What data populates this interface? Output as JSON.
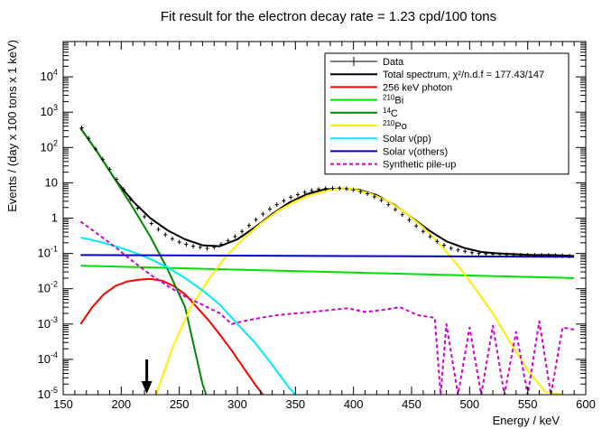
{
  "chart_data": {
    "type": "line",
    "title": "Fit result for the electron decay rate = 1.23 cpd/100 tons",
    "xlabel": "Energy / keV",
    "ylabel": "Events / (day x 100 tons x 1 keV)",
    "xlim": [
      150,
      600
    ],
    "ylim": [
      1e-05,
      100000.0
    ],
    "yscale": "log",
    "grid": false,
    "legend_position": "top-right",
    "x_ticks": [
      150,
      200,
      250,
      300,
      350,
      400,
      450,
      500,
      550,
      600
    ],
    "x_tick_labels": [
      "150",
      "200",
      "250",
      "300",
      "350",
      "400",
      "450",
      "500",
      "550",
      "600"
    ],
    "y_ticks": [
      1e-05,
      0.0001,
      0.001,
      0.01,
      0.1,
      1,
      10,
      100,
      1000,
      10000
    ],
    "y_tick_labels": [
      {
        "base": "10",
        "exp": "-5"
      },
      {
        "base": "10",
        "exp": "-4"
      },
      {
        "base": "10",
        "exp": "-3"
      },
      {
        "base": "10",
        "exp": "-2"
      },
      {
        "base": "10",
        "exp": "-1"
      },
      {
        "base": "1",
        "exp": ""
      },
      {
        "base": "10",
        "exp": ""
      },
      {
        "base": "10",
        "exp": "2"
      },
      {
        "base": "10",
        "exp": "3"
      },
      {
        "base": "10",
        "exp": "4"
      }
    ],
    "arrow_marker_x": 222,
    "series": [
      {
        "name": "Total spectrum",
        "color": "#000000",
        "style": "solid",
        "x": [
          165,
          180,
          195,
          210,
          225,
          240,
          255,
          270,
          285,
          300,
          315,
          330,
          345,
          360,
          375,
          390,
          405,
          420,
          435,
          450,
          465,
          480,
          495,
          510,
          525,
          540,
          555,
          570,
          590
        ],
        "y": [
          350,
          70,
          12,
          3,
          1.0,
          0.45,
          0.25,
          0.17,
          0.16,
          0.25,
          0.55,
          1.3,
          2.8,
          4.8,
          6.5,
          7.0,
          6.3,
          4.5,
          2.4,
          1.05,
          0.45,
          0.22,
          0.145,
          0.11,
          0.1,
          0.095,
          0.09,
          0.09,
          0.085
        ]
      },
      {
        "name": "256 keV photon",
        "color": "#ff0000",
        "style": "solid",
        "x": [
          165,
          175,
          185,
          195,
          205,
          215,
          225,
          235,
          245,
          255,
          265,
          275,
          285,
          295,
          305,
          315,
          322
        ],
        "y": [
          0.001,
          0.003,
          0.007,
          0.012,
          0.016,
          0.018,
          0.019,
          0.017,
          0.012,
          0.007,
          0.003,
          0.0013,
          0.0005,
          0.00018,
          6e-05,
          2e-05,
          1e-05
        ]
      },
      {
        "name": "Bi",
        "color": "#00e000",
        "style": "solid",
        "x": [
          165,
          590
        ],
        "y": [
          0.045,
          0.02
        ]
      },
      {
        "name": "C",
        "color": "#008800",
        "style": "solid",
        "x": [
          165,
          180,
          195,
          210,
          225,
          240,
          255,
          270,
          273
        ],
        "y": [
          350,
          70,
          12,
          2.0,
          0.3,
          0.035,
          0.003,
          2e-05,
          1e-05
        ]
      },
      {
        "name": "Po",
        "color": "#ffee00",
        "style": "solid",
        "x": [
          230,
          245,
          260,
          275,
          290,
          305,
          320,
          335,
          350,
          365,
          380,
          390,
          400,
          415,
          430,
          445,
          460,
          475,
          490,
          505,
          520,
          535,
          550,
          565,
          580
        ],
        "y": [
          1e-05,
          0.00025,
          0.003,
          0.018,
          0.08,
          0.26,
          0.7,
          1.6,
          3.0,
          4.7,
          6.3,
          7.0,
          6.6,
          4.9,
          3.0,
          1.4,
          0.55,
          0.17,
          0.045,
          0.01,
          0.002,
          0.0003,
          5e-05,
          1.2e-05,
          1e-05
        ]
      },
      {
        "name": "Solar ν(pp)",
        "color": "#00eaff",
        "style": "solid",
        "x": [
          165,
          180,
          195,
          210,
          225,
          240,
          255,
          270,
          285,
          300,
          315,
          330,
          345,
          350
        ],
        "y": [
          0.28,
          0.22,
          0.16,
          0.11,
          0.07,
          0.04,
          0.02,
          0.009,
          0.0035,
          0.001,
          0.0003,
          7e-05,
          1.5e-05,
          1e-05
        ]
      },
      {
        "name": "Solar ν(others)",
        "color": "#0000cc",
        "style": "solid",
        "x": [
          165,
          590
        ],
        "y": [
          0.09,
          0.08
        ]
      },
      {
        "name": "Synthetic pile-up",
        "color": "#d000d0",
        "style": "dashed",
        "x": [
          165,
          180,
          195,
          210,
          225,
          240,
          255,
          270,
          285,
          295,
          305,
          320,
          335,
          350,
          365,
          380,
          395,
          410,
          425,
          440,
          455,
          470,
          475,
          480,
          490,
          500,
          510,
          520,
          530,
          540,
          550,
          560,
          570,
          580,
          590
        ],
        "y": [
          0.8,
          0.35,
          0.15,
          0.06,
          0.025,
          0.012,
          0.006,
          0.0035,
          0.002,
          0.001,
          0.0012,
          0.0015,
          0.0018,
          0.002,
          0.0022,
          0.0025,
          0.0028,
          0.0022,
          0.0025,
          0.003,
          0.0018,
          0.0015,
          1e-05,
          0.001,
          1e-05,
          0.0008,
          1e-05,
          0.0009,
          1e-05,
          0.0006,
          1e-05,
          0.0012,
          1e-05,
          0.0008,
          0.0007
        ]
      }
    ],
    "data_series": {
      "name": "Data",
      "x": [
        166,
        172,
        178,
        184,
        190,
        196,
        202,
        208,
        214,
        220,
        226,
        232,
        238,
        244,
        250,
        256,
        262,
        268,
        274,
        280,
        286,
        292,
        298,
        304,
        310,
        316,
        322,
        328,
        334,
        340,
        346,
        352,
        358,
        364,
        370,
        376,
        382,
        388,
        394,
        400,
        406,
        412,
        418,
        424,
        430,
        436,
        442,
        448,
        454,
        460,
        466,
        472,
        478,
        484,
        490,
        496,
        502,
        508,
        514,
        520,
        526,
        532,
        538,
        544,
        550,
        556,
        562,
        568,
        574,
        580,
        586
      ],
      "y": [
        360,
        180,
        90,
        46,
        24,
        12.5,
        6.5,
        3.5,
        1.9,
        1.1,
        0.7,
        0.48,
        0.34,
        0.26,
        0.21,
        0.18,
        0.16,
        0.15,
        0.14,
        0.15,
        0.18,
        0.23,
        0.3,
        0.42,
        0.62,
        0.9,
        1.3,
        1.8,
        2.4,
        3.1,
        3.9,
        4.6,
        5.4,
        6.0,
        6.5,
        6.9,
        7.0,
        7.0,
        6.8,
        6.3,
        5.6,
        4.9,
        4.0,
        3.2,
        2.4,
        1.75,
        1.25,
        0.88,
        0.6,
        0.42,
        0.3,
        0.22,
        0.17,
        0.14,
        0.125,
        0.115,
        0.105,
        0.1,
        0.097,
        0.095,
        0.094,
        0.092,
        0.091,
        0.09,
        0.09,
        0.089,
        0.088,
        0.088,
        0.087,
        0.086,
        0.085
      ]
    }
  },
  "legend": {
    "entries": [
      {
        "key": "data",
        "text": "Data",
        "sup": "",
        "color": "#000000",
        "style": "errorbar"
      },
      {
        "key": "total",
        "text": "Total spectrum, χ²/n.d.f = 177.43/147",
        "sup": "",
        "color": "#000000",
        "style": "solid"
      },
      {
        "key": "photon",
        "text": "256 keV photon",
        "sup": "",
        "color": "#ff0000",
        "style": "solid"
      },
      {
        "key": "bi",
        "text": "Bi",
        "sup": "210",
        "color": "#00e000",
        "style": "solid"
      },
      {
        "key": "c",
        "text": "C",
        "sup": "14",
        "color": "#008800",
        "style": "solid"
      },
      {
        "key": "po",
        "text": "Po",
        "sup": "210",
        "color": "#ffee00",
        "style": "solid"
      },
      {
        "key": "pp",
        "text": "Solar ν(pp)",
        "sup": "",
        "color": "#00eaff",
        "style": "solid"
      },
      {
        "key": "others",
        "text": "Solar ν(others)",
        "sup": "",
        "color": "#0000cc",
        "style": "solid"
      },
      {
        "key": "pileup",
        "text": "Synthetic pile-up",
        "sup": "",
        "color": "#d000d0",
        "style": "dashed"
      }
    ]
  }
}
